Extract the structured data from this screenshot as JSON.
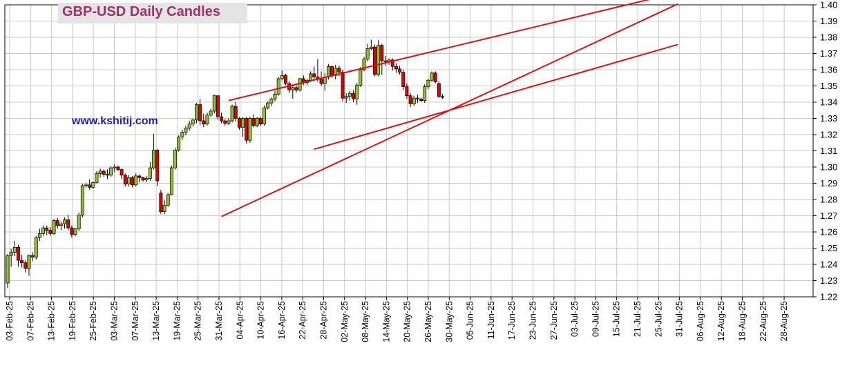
{
  "title": "GBP-USD Daily Candles",
  "watermark": "www.kshitij.com",
  "colors": {
    "up": "#8fc02e",
    "down": "#e00000",
    "trendline": "#e01010",
    "grid": "#c8c8c8",
    "title_bg": "#e4e4e4"
  },
  "chart_data": {
    "type": "candlestick",
    "title": "GBP-USD Daily Candles",
    "ylim": [
      1.22,
      1.4
    ],
    "yticks": [
      "1.22",
      "1.23",
      "1.24",
      "1.25",
      "1.26",
      "1.27",
      "1.28",
      "1.29",
      "1.30",
      "1.31",
      "1.32",
      "1.33",
      "1.34",
      "1.35",
      "1.36",
      "1.37",
      "1.38",
      "1.39",
      "1.40"
    ],
    "xticks": [
      "03-Feb-25",
      "07-Feb-25",
      "13-Feb-25",
      "19-Feb-25",
      "25-Feb-25",
      "03-Mar-25",
      "07-Mar-25",
      "13-Mar-25",
      "19-Mar-25",
      "25-Mar-25",
      "31-Mar-25",
      "04-Apr-25",
      "10-Apr-25",
      "16-Apr-25",
      "22-Apr-25",
      "28-Apr-25",
      "02-May-25",
      "08-May-25",
      "14-May-25",
      "20-May-25",
      "26-May-25",
      "30-May-25",
      "05-Jun-25",
      "11-Jun-25",
      "17-Jun-25",
      "23-Jun-25",
      "27-Jun-25",
      "03-Jul-25",
      "09-Jul-25",
      "15-Jul-25",
      "21-Jul-25",
      "25-Jul-25",
      "31-Jul-25",
      "06-Aug-25",
      "12-Aug-25",
      "18-Aug-25",
      "22-Aug-25",
      "28-Aug-25"
    ],
    "grid": true,
    "candles": [
      {
        "o": 1.2285,
        "h": 1.2465,
        "l": 1.2255,
        "c": 1.2455
      },
      {
        "o": 1.2455,
        "h": 1.2495,
        "l": 1.2385,
        "c": 1.2475
      },
      {
        "o": 1.2475,
        "h": 1.2545,
        "l": 1.245,
        "c": 1.2505
      },
      {
        "o": 1.2505,
        "h": 1.252,
        "l": 1.2385,
        "c": 1.2425
      },
      {
        "o": 1.2425,
        "h": 1.246,
        "l": 1.238,
        "c": 1.241
      },
      {
        "o": 1.241,
        "h": 1.2425,
        "l": 1.235,
        "c": 1.2375
      },
      {
        "o": 1.2375,
        "h": 1.246,
        "l": 1.233,
        "c": 1.2455
      },
      {
        "o": 1.2455,
        "h": 1.2475,
        "l": 1.242,
        "c": 1.2445
      },
      {
        "o": 1.2445,
        "h": 1.2575,
        "l": 1.243,
        "c": 1.2565
      },
      {
        "o": 1.2565,
        "h": 1.262,
        "l": 1.2545,
        "c": 1.259
      },
      {
        "o": 1.259,
        "h": 1.264,
        "l": 1.2575,
        "c": 1.2625
      },
      {
        "o": 1.2625,
        "h": 1.264,
        "l": 1.258,
        "c": 1.261
      },
      {
        "o": 1.261,
        "h": 1.263,
        "l": 1.2575,
        "c": 1.259
      },
      {
        "o": 1.259,
        "h": 1.268,
        "l": 1.258,
        "c": 1.267
      },
      {
        "o": 1.267,
        "h": 1.2685,
        "l": 1.262,
        "c": 1.264
      },
      {
        "o": 1.264,
        "h": 1.2665,
        "l": 1.261,
        "c": 1.265
      },
      {
        "o": 1.265,
        "h": 1.269,
        "l": 1.262,
        "c": 1.2675
      },
      {
        "o": 1.2675,
        "h": 1.2705,
        "l": 1.261,
        "c": 1.2625
      },
      {
        "o": 1.2625,
        "h": 1.264,
        "l": 1.2565,
        "c": 1.2585
      },
      {
        "o": 1.2585,
        "h": 1.2625,
        "l": 1.2575,
        "c": 1.262
      },
      {
        "o": 1.262,
        "h": 1.272,
        "l": 1.2605,
        "c": 1.2705
      },
      {
        "o": 1.2705,
        "h": 1.2895,
        "l": 1.269,
        "c": 1.2885
      },
      {
        "o": 1.2885,
        "h": 1.2905,
        "l": 1.287,
        "c": 1.289
      },
      {
        "o": 1.289,
        "h": 1.2925,
        "l": 1.286,
        "c": 1.2875
      },
      {
        "o": 1.2875,
        "h": 1.291,
        "l": 1.2865,
        "c": 1.2905
      },
      {
        "o": 1.2905,
        "h": 1.2975,
        "l": 1.29,
        "c": 1.296
      },
      {
        "o": 1.296,
        "h": 1.299,
        "l": 1.2935,
        "c": 1.2975
      },
      {
        "o": 1.2975,
        "h": 1.2985,
        "l": 1.294,
        "c": 1.2955
      },
      {
        "o": 1.2955,
        "h": 1.2985,
        "l": 1.2925,
        "c": 1.295
      },
      {
        "o": 1.295,
        "h": 1.3005,
        "l": 1.294,
        "c": 1.2995
      },
      {
        "o": 1.2995,
        "h": 1.3015,
        "l": 1.297,
        "c": 1.3
      },
      {
        "o": 1.3,
        "h": 1.301,
        "l": 1.2975,
        "c": 1.2985
      },
      {
        "o": 1.2985,
        "h": 1.299,
        "l": 1.2925,
        "c": 1.295
      },
      {
        "o": 1.295,
        "h": 1.296,
        "l": 1.288,
        "c": 1.2895
      },
      {
        "o": 1.2895,
        "h": 1.295,
        "l": 1.288,
        "c": 1.2935
      },
      {
        "o": 1.2935,
        "h": 1.2945,
        "l": 1.2875,
        "c": 1.289
      },
      {
        "o": 1.289,
        "h": 1.296,
        "l": 1.288,
        "c": 1.2945
      },
      {
        "o": 1.2945,
        "h": 1.2955,
        "l": 1.2905,
        "c": 1.2935
      },
      {
        "o": 1.2935,
        "h": 1.294,
        "l": 1.291,
        "c": 1.292
      },
      {
        "o": 1.292,
        "h": 1.2945,
        "l": 1.2905,
        "c": 1.293
      },
      {
        "o": 1.293,
        "h": 1.303,
        "l": 1.2915,
        "c": 1.2995
      },
      {
        "o": 1.2995,
        "h": 1.3205,
        "l": 1.2985,
        "c": 1.3105
      },
      {
        "o": 1.3105,
        "h": 1.311,
        "l": 1.2885,
        "c": 1.2915
      },
      {
        "o": 1.284,
        "h": 1.286,
        "l": 1.271,
        "c": 1.2725
      },
      {
        "o": 1.2725,
        "h": 1.2795,
        "l": 1.271,
        "c": 1.2765
      },
      {
        "o": 1.2765,
        "h": 1.284,
        "l": 1.2755,
        "c": 1.283
      },
      {
        "o": 1.283,
        "h": 1.301,
        "l": 1.2825,
        "c": 1.2995
      },
      {
        "o": 1.2995,
        "h": 1.312,
        "l": 1.2985,
        "c": 1.3105
      },
      {
        "o": 1.3105,
        "h": 1.3195,
        "l": 1.3095,
        "c": 1.3185
      },
      {
        "o": 1.3185,
        "h": 1.323,
        "l": 1.3165,
        "c": 1.3215
      },
      {
        "o": 1.3215,
        "h": 1.3255,
        "l": 1.3195,
        "c": 1.324
      },
      {
        "o": 1.324,
        "h": 1.3285,
        "l": 1.3225,
        "c": 1.3265
      },
      {
        "o": 1.3265,
        "h": 1.33,
        "l": 1.325,
        "c": 1.329
      },
      {
        "o": 1.329,
        "h": 1.3395,
        "l": 1.327,
        "c": 1.3385
      },
      {
        "o": 1.3385,
        "h": 1.342,
        "l": 1.326,
        "c": 1.3285
      },
      {
        "o": 1.3285,
        "h": 1.333,
        "l": 1.3245,
        "c": 1.3265
      },
      {
        "o": 1.3265,
        "h": 1.3335,
        "l": 1.3255,
        "c": 1.332
      },
      {
        "o": 1.332,
        "h": 1.336,
        "l": 1.331,
        "c": 1.3345
      },
      {
        "o": 1.3345,
        "h": 1.3445,
        "l": 1.333,
        "c": 1.344
      },
      {
        "o": 1.344,
        "h": 1.3445,
        "l": 1.329,
        "c": 1.331
      },
      {
        "o": 1.331,
        "h": 1.3335,
        "l": 1.327,
        "c": 1.3285
      },
      {
        "o": 1.3285,
        "h": 1.3295,
        "l": 1.3255,
        "c": 1.327
      },
      {
        "o": 1.327,
        "h": 1.33,
        "l": 1.326,
        "c": 1.3285
      },
      {
        "o": 1.3285,
        "h": 1.3385,
        "l": 1.3275,
        "c": 1.3375
      },
      {
        "o": 1.3375,
        "h": 1.34,
        "l": 1.328,
        "c": 1.33
      },
      {
        "o": 1.33,
        "h": 1.331,
        "l": 1.323,
        "c": 1.3245
      },
      {
        "o": 1.3245,
        "h": 1.331,
        "l": 1.3185,
        "c": 1.33
      },
      {
        "o": 1.33,
        "h": 1.331,
        "l": 1.3145,
        "c": 1.3165
      },
      {
        "o": 1.3165,
        "h": 1.331,
        "l": 1.315,
        "c": 1.33
      },
      {
        "o": 1.33,
        "h": 1.3325,
        "l": 1.3245,
        "c": 1.3255
      },
      {
        "o": 1.3255,
        "h": 1.331,
        "l": 1.3245,
        "c": 1.33
      },
      {
        "o": 1.33,
        "h": 1.331,
        "l": 1.3255,
        "c": 1.3265
      },
      {
        "o": 1.3265,
        "h": 1.338,
        "l": 1.3255,
        "c": 1.3365
      },
      {
        "o": 1.3365,
        "h": 1.3405,
        "l": 1.3355,
        "c": 1.3395
      },
      {
        "o": 1.3395,
        "h": 1.343,
        "l": 1.3375,
        "c": 1.342
      },
      {
        "o": 1.342,
        "h": 1.347,
        "l": 1.3405,
        "c": 1.345
      },
      {
        "o": 1.345,
        "h": 1.3555,
        "l": 1.344,
        "c": 1.3545
      },
      {
        "o": 1.3545,
        "h": 1.3595,
        "l": 1.3535,
        "c": 1.3565
      },
      {
        "o": 1.3565,
        "h": 1.3575,
        "l": 1.3505,
        "c": 1.3515
      },
      {
        "o": 1.3515,
        "h": 1.353,
        "l": 1.3455,
        "c": 1.3475
      },
      {
        "o": 1.3475,
        "h": 1.3505,
        "l": 1.342,
        "c": 1.349
      },
      {
        "o": 1.349,
        "h": 1.3505,
        "l": 1.346,
        "c": 1.3475
      },
      {
        "o": 1.3475,
        "h": 1.355,
        "l": 1.3465,
        "c": 1.3545
      },
      {
        "o": 1.3545,
        "h": 1.3565,
        "l": 1.3505,
        "c": 1.352
      },
      {
        "o": 1.352,
        "h": 1.3545,
        "l": 1.3505,
        "c": 1.3535
      },
      {
        "o": 1.3535,
        "h": 1.359,
        "l": 1.3525,
        "c": 1.3575
      },
      {
        "o": 1.3575,
        "h": 1.362,
        "l": 1.354,
        "c": 1.3555
      },
      {
        "o": 1.3555,
        "h": 1.3665,
        "l": 1.3525,
        "c": 1.354
      },
      {
        "o": 1.354,
        "h": 1.359,
        "l": 1.35,
        "c": 1.3515
      },
      {
        "o": 1.3515,
        "h": 1.358,
        "l": 1.347,
        "c": 1.3555
      },
      {
        "o": 1.3555,
        "h": 1.3635,
        "l": 1.354,
        "c": 1.362
      },
      {
        "o": 1.362,
        "h": 1.3625,
        "l": 1.355,
        "c": 1.3565
      },
      {
        "o": 1.3565,
        "h": 1.363,
        "l": 1.354,
        "c": 1.361
      },
      {
        "o": 1.361,
        "h": 1.3625,
        "l": 1.356,
        "c": 1.3585
      },
      {
        "o": 1.3585,
        "h": 1.36,
        "l": 1.3405,
        "c": 1.3425
      },
      {
        "o": 1.3425,
        "h": 1.3455,
        "l": 1.3395,
        "c": 1.3435
      },
      {
        "o": 1.3435,
        "h": 1.347,
        "l": 1.341,
        "c": 1.3455
      },
      {
        "o": 1.3455,
        "h": 1.3475,
        "l": 1.34,
        "c": 1.342
      },
      {
        "o": 1.342,
        "h": 1.352,
        "l": 1.3385,
        "c": 1.3505
      },
      {
        "o": 1.3505,
        "h": 1.3615,
        "l": 1.3495,
        "c": 1.36
      },
      {
        "o": 1.36,
        "h": 1.368,
        "l": 1.359,
        "c": 1.3665
      },
      {
        "o": 1.3665,
        "h": 1.376,
        "l": 1.365,
        "c": 1.373
      },
      {
        "o": 1.373,
        "h": 1.3785,
        "l": 1.372,
        "c": 1.374
      },
      {
        "o": 1.374,
        "h": 1.3755,
        "l": 1.356,
        "c": 1.357
      },
      {
        "o": 1.357,
        "h": 1.3785,
        "l": 1.356,
        "c": 1.375
      },
      {
        "o": 1.375,
        "h": 1.376,
        "l": 1.357,
        "c": 1.3655
      },
      {
        "o": 1.3655,
        "h": 1.3685,
        "l": 1.3625,
        "c": 1.365
      },
      {
        "o": 1.365,
        "h": 1.367,
        "l": 1.363,
        "c": 1.366
      },
      {
        "o": 1.366,
        "h": 1.367,
        "l": 1.3595,
        "c": 1.362
      },
      {
        "o": 1.362,
        "h": 1.364,
        "l": 1.358,
        "c": 1.3605
      },
      {
        "o": 1.3605,
        "h": 1.3625,
        "l": 1.357,
        "c": 1.3585
      },
      {
        "o": 1.3585,
        "h": 1.36,
        "l": 1.3475,
        "c": 1.3495
      },
      {
        "o": 1.3495,
        "h": 1.3515,
        "l": 1.342,
        "c": 1.344
      },
      {
        "o": 1.344,
        "h": 1.3455,
        "l": 1.337,
        "c": 1.339
      },
      {
        "o": 1.339,
        "h": 1.344,
        "l": 1.3375,
        "c": 1.3425
      },
      {
        "o": 1.3425,
        "h": 1.3445,
        "l": 1.3395,
        "c": 1.342
      },
      {
        "o": 1.342,
        "h": 1.343,
        "l": 1.34,
        "c": 1.341
      },
      {
        "o": 1.341,
        "h": 1.351,
        "l": 1.3395,
        "c": 1.3495
      },
      {
        "o": 1.3495,
        "h": 1.3545,
        "l": 1.348,
        "c": 1.3535
      },
      {
        "o": 1.3535,
        "h": 1.359,
        "l": 1.3525,
        "c": 1.358
      },
      {
        "o": 1.358,
        "h": 1.359,
        "l": 1.3515,
        "c": 1.3525
      },
      {
        "o": 1.3515,
        "h": 1.353,
        "l": 1.3425,
        "c": 1.3435
      },
      {
        "o": 1.3435,
        "h": 1.345,
        "l": 1.342,
        "c": 1.343
      }
    ],
    "trendlines": [
      {
        "x1": 62,
        "y1": 1.341,
        "x2": 187,
        "y2": 1.407
      },
      {
        "x1": 60,
        "y1": 1.2695,
        "x2": 188,
        "y2": 1.4005
      },
      {
        "x1": 86,
        "y1": 1.311,
        "x2": 188,
        "y2": 1.3755
      }
    ]
  }
}
